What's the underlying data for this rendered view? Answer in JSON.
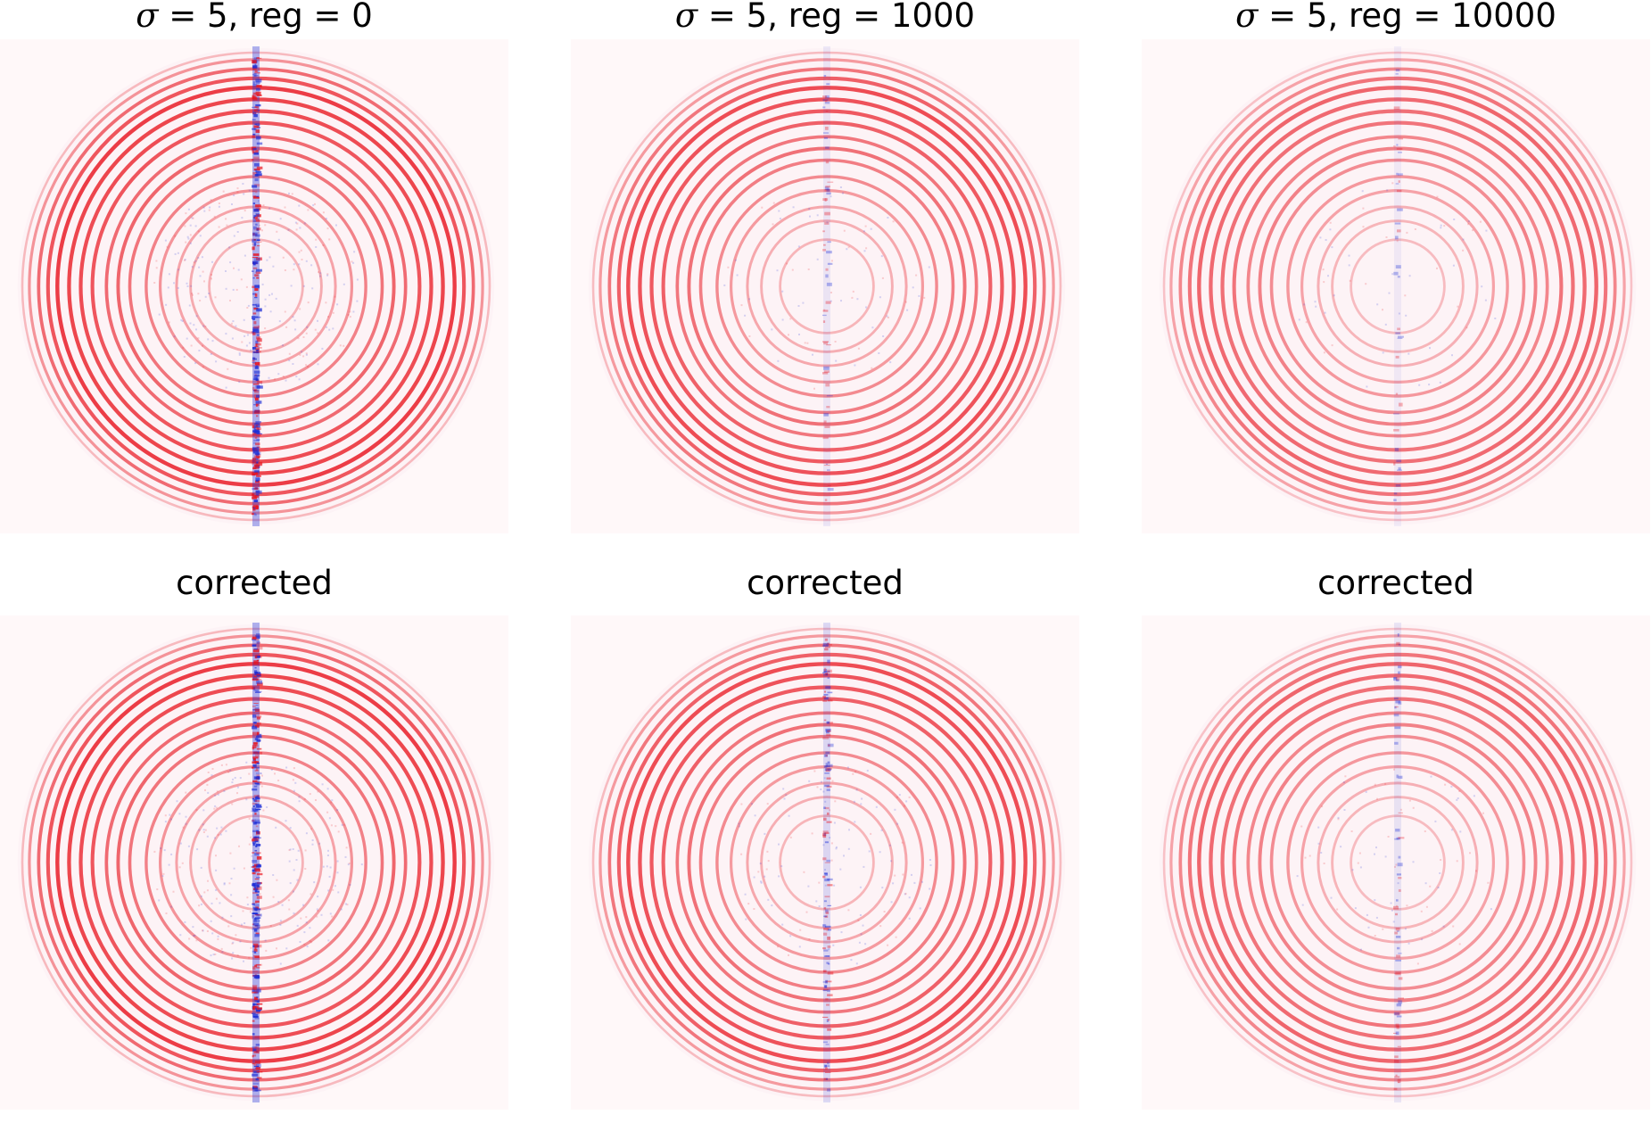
{
  "figure": {
    "panels": [
      {
        "row": 0,
        "col": 0,
        "title_symbol": "σ",
        "title_rest": " = 5, reg = 0",
        "artifact": 1.0,
        "ring_strength": 1.0
      },
      {
        "row": 0,
        "col": 1,
        "title_symbol": "σ",
        "title_rest": " = 5, reg = 1000",
        "artifact": 0.1,
        "ring_strength": 0.9
      },
      {
        "row": 0,
        "col": 2,
        "title_symbol": "σ",
        "title_rest": " = 5, reg = 10000",
        "artifact": 0.03,
        "ring_strength": 0.75
      },
      {
        "row": 1,
        "col": 0,
        "title_symbol": "",
        "title_rest": "corrected",
        "artifact": 1.0,
        "ring_strength": 1.0
      },
      {
        "row": 1,
        "col": 1,
        "title_symbol": "",
        "title_rest": "corrected",
        "artifact": 0.35,
        "ring_strength": 0.9
      },
      {
        "row": 1,
        "col": 2,
        "title_symbol": "",
        "title_rest": "corrected",
        "artifact": 0.12,
        "ring_strength": 0.75
      }
    ],
    "colormap": {
      "positive": "#e8141e",
      "negative": "#1a2cd6",
      "background": "#fff8f9"
    }
  }
}
